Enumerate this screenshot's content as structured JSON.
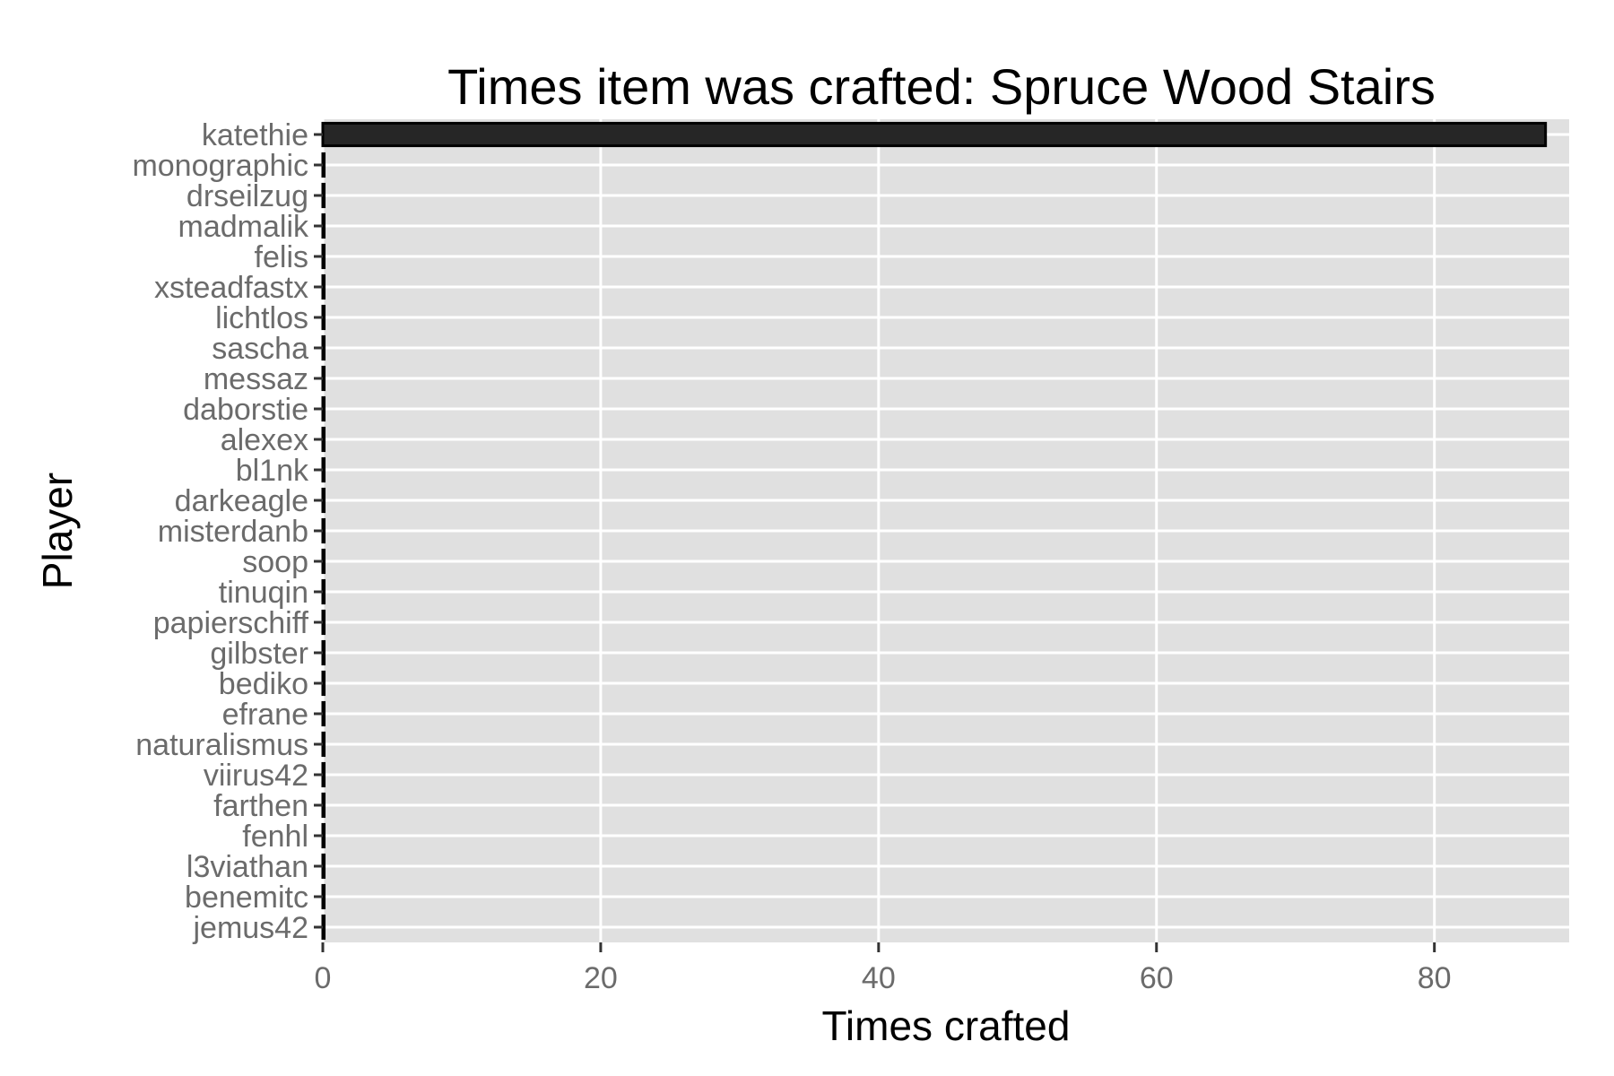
{
  "chart_data": {
    "type": "bar",
    "orientation": "horizontal",
    "title": "Times item was crafted: Spruce Wood Stairs",
    "xlabel": "Times crafted",
    "ylabel": "Player",
    "categories": [
      "katethie",
      "monographic",
      "drseilzug",
      "madmalik",
      "felis",
      "xsteadfastx",
      "lichtlos",
      "sascha",
      "messaz",
      "daborstie",
      "alexex",
      "bl1nk",
      "darkeagle",
      "misterdanb",
      "soop",
      "tinuqin",
      "papierschiff",
      "gilbster",
      "bediko",
      "efrane",
      "naturalismus",
      "viirus42",
      "farthen",
      "fenhl",
      "l3viathan",
      "benemitc",
      "jemus42"
    ],
    "values": [
      88,
      0.1,
      0.1,
      0.1,
      0.1,
      0.1,
      0.1,
      0.1,
      0.1,
      0.1,
      0.1,
      0.1,
      0.1,
      0.1,
      0.1,
      0.1,
      0.1,
      0.1,
      0.1,
      0.1,
      0.1,
      0.1,
      0.1,
      0.1,
      0.1,
      0.1,
      0.1
    ],
    "xticks": [
      0,
      20,
      40,
      60,
      80
    ],
    "xlim": [
      0,
      89.7
    ],
    "grid": true,
    "colors": {
      "bar": "#262626",
      "bar_outline": "#000000",
      "panel": "#e0e0e0",
      "grid": "#ffffff"
    }
  }
}
